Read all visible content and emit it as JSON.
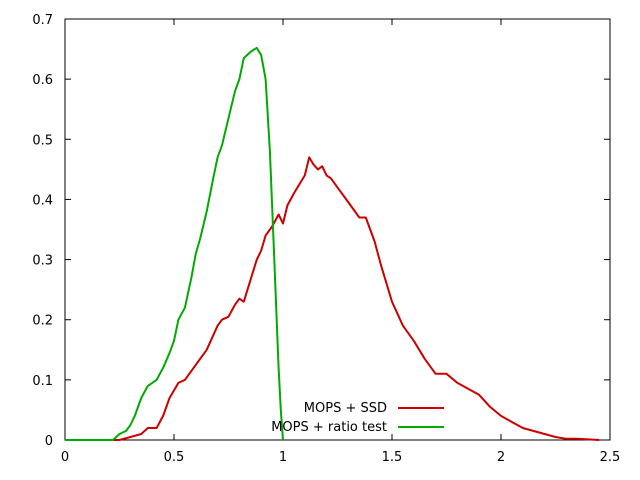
{
  "chart_data": {
    "type": "line",
    "title": "",
    "xlabel": "",
    "ylabel": "",
    "xlim": [
      0,
      2.5
    ],
    "ylim": [
      0,
      0.7
    ],
    "xticks": [
      0,
      0.5,
      1,
      1.5,
      2,
      2.5
    ],
    "yticks": [
      0,
      0.1,
      0.2,
      0.3,
      0.4,
      0.5,
      0.6,
      0.7
    ],
    "xtick_labels": [
      "0",
      "0.5",
      "1",
      "1.5",
      "2",
      "2.5"
    ],
    "ytick_labels": [
      "0",
      "0.1",
      "0.2",
      "0.3",
      "0.4",
      "0.5",
      "0.6",
      "0.7"
    ],
    "grid": false,
    "legend_position": "bottom-center",
    "series": [
      {
        "name": "MOPS + SSD",
        "color": "#cc0000",
        "x": [
          0.0,
          0.25,
          0.3,
          0.35,
          0.38,
          0.42,
          0.45,
          0.48,
          0.52,
          0.55,
          0.6,
          0.65,
          0.7,
          0.72,
          0.75,
          0.78,
          0.8,
          0.82,
          0.85,
          0.88,
          0.9,
          0.92,
          0.95,
          0.98,
          1.0,
          1.02,
          1.05,
          1.1,
          1.12,
          1.14,
          1.16,
          1.18,
          1.2,
          1.22,
          1.25,
          1.3,
          1.35,
          1.38,
          1.42,
          1.45,
          1.5,
          1.55,
          1.6,
          1.65,
          1.7,
          1.75,
          1.8,
          1.85,
          1.9,
          1.95,
          2.0,
          2.05,
          2.1,
          2.15,
          2.2,
          2.25,
          2.3,
          2.35,
          2.4,
          2.45
        ],
        "y": [
          0.0,
          0.0,
          0.005,
          0.01,
          0.02,
          0.02,
          0.04,
          0.07,
          0.095,
          0.1,
          0.125,
          0.15,
          0.19,
          0.2,
          0.205,
          0.225,
          0.235,
          0.23,
          0.265,
          0.3,
          0.315,
          0.34,
          0.355,
          0.375,
          0.36,
          0.39,
          0.41,
          0.44,
          0.47,
          0.458,
          0.45,
          0.455,
          0.44,
          0.435,
          0.42,
          0.395,
          0.37,
          0.37,
          0.33,
          0.29,
          0.23,
          0.19,
          0.165,
          0.135,
          0.11,
          0.11,
          0.095,
          0.085,
          0.075,
          0.055,
          0.04,
          0.03,
          0.02,
          0.015,
          0.01,
          0.005,
          0.002,
          0.002,
          0.001,
          0.0
        ]
      },
      {
        "name": "MOPS + ratio test",
        "color": "#00aa00",
        "x": [
          0.0,
          0.22,
          0.25,
          0.28,
          0.3,
          0.32,
          0.35,
          0.38,
          0.4,
          0.42,
          0.45,
          0.48,
          0.5,
          0.52,
          0.55,
          0.58,
          0.6,
          0.62,
          0.65,
          0.68,
          0.7,
          0.72,
          0.75,
          0.78,
          0.8,
          0.82,
          0.85,
          0.87,
          0.88,
          0.9,
          0.92,
          0.94,
          0.96,
          0.98,
          0.99,
          1.0
        ],
        "y": [
          0.0,
          0.0,
          0.01,
          0.015,
          0.025,
          0.04,
          0.07,
          0.09,
          0.095,
          0.1,
          0.12,
          0.145,
          0.165,
          0.2,
          0.22,
          0.27,
          0.31,
          0.335,
          0.38,
          0.435,
          0.47,
          0.49,
          0.535,
          0.58,
          0.6,
          0.635,
          0.645,
          0.65,
          0.652,
          0.64,
          0.6,
          0.48,
          0.3,
          0.12,
          0.05,
          0.0
        ]
      }
    ]
  }
}
